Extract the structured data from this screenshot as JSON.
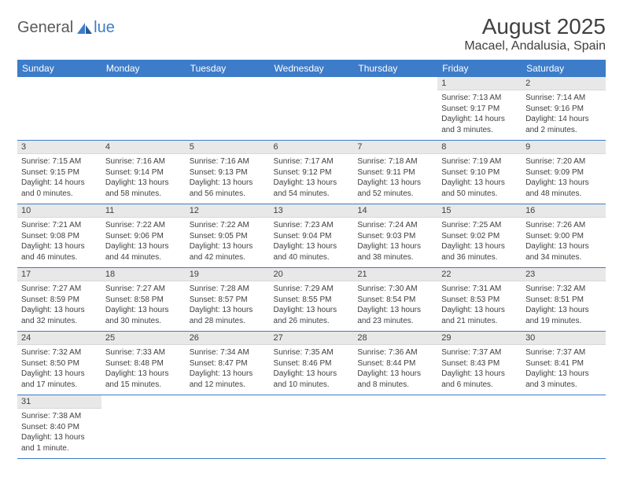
{
  "logo": {
    "text_before": "General",
    "text_after": "lue"
  },
  "title": "August 2025",
  "location": "Macael, Andalusia, Spain",
  "colors": {
    "header_bg": "#3d7cc9",
    "header_text": "#ffffff",
    "daynum_bg": "#e8e8e8",
    "text": "#404040",
    "row_border": "#3d7cc9",
    "logo_gray": "#5a5a5a",
    "logo_blue": "#3d7cc9",
    "background": "#ffffff"
  },
  "typography": {
    "title_fontsize": 28,
    "location_fontsize": 16,
    "dayheader_fontsize": 12,
    "daynum_fontsize": 11,
    "body_fontsize": 10,
    "font_family": "Arial"
  },
  "day_names": [
    "Sunday",
    "Monday",
    "Tuesday",
    "Wednesday",
    "Thursday",
    "Friday",
    "Saturday"
  ],
  "weeks": [
    [
      null,
      null,
      null,
      null,
      null,
      {
        "n": "1",
        "sunrise": "7:13 AM",
        "sunset": "9:17 PM",
        "daylight": "14 hours and 3 minutes."
      },
      {
        "n": "2",
        "sunrise": "7:14 AM",
        "sunset": "9:16 PM",
        "daylight": "14 hours and 2 minutes."
      }
    ],
    [
      {
        "n": "3",
        "sunrise": "7:15 AM",
        "sunset": "9:15 PM",
        "daylight": "14 hours and 0 minutes."
      },
      {
        "n": "4",
        "sunrise": "7:16 AM",
        "sunset": "9:14 PM",
        "daylight": "13 hours and 58 minutes."
      },
      {
        "n": "5",
        "sunrise": "7:16 AM",
        "sunset": "9:13 PM",
        "daylight": "13 hours and 56 minutes."
      },
      {
        "n": "6",
        "sunrise": "7:17 AM",
        "sunset": "9:12 PM",
        "daylight": "13 hours and 54 minutes."
      },
      {
        "n": "7",
        "sunrise": "7:18 AM",
        "sunset": "9:11 PM",
        "daylight": "13 hours and 52 minutes."
      },
      {
        "n": "8",
        "sunrise": "7:19 AM",
        "sunset": "9:10 PM",
        "daylight": "13 hours and 50 minutes."
      },
      {
        "n": "9",
        "sunrise": "7:20 AM",
        "sunset": "9:09 PM",
        "daylight": "13 hours and 48 minutes."
      }
    ],
    [
      {
        "n": "10",
        "sunrise": "7:21 AM",
        "sunset": "9:08 PM",
        "daylight": "13 hours and 46 minutes."
      },
      {
        "n": "11",
        "sunrise": "7:22 AM",
        "sunset": "9:06 PM",
        "daylight": "13 hours and 44 minutes."
      },
      {
        "n": "12",
        "sunrise": "7:22 AM",
        "sunset": "9:05 PM",
        "daylight": "13 hours and 42 minutes."
      },
      {
        "n": "13",
        "sunrise": "7:23 AM",
        "sunset": "9:04 PM",
        "daylight": "13 hours and 40 minutes."
      },
      {
        "n": "14",
        "sunrise": "7:24 AM",
        "sunset": "9:03 PM",
        "daylight": "13 hours and 38 minutes."
      },
      {
        "n": "15",
        "sunrise": "7:25 AM",
        "sunset": "9:02 PM",
        "daylight": "13 hours and 36 minutes."
      },
      {
        "n": "16",
        "sunrise": "7:26 AM",
        "sunset": "9:00 PM",
        "daylight": "13 hours and 34 minutes."
      }
    ],
    [
      {
        "n": "17",
        "sunrise": "7:27 AM",
        "sunset": "8:59 PM",
        "daylight": "13 hours and 32 minutes."
      },
      {
        "n": "18",
        "sunrise": "7:27 AM",
        "sunset": "8:58 PM",
        "daylight": "13 hours and 30 minutes."
      },
      {
        "n": "19",
        "sunrise": "7:28 AM",
        "sunset": "8:57 PM",
        "daylight": "13 hours and 28 minutes."
      },
      {
        "n": "20",
        "sunrise": "7:29 AM",
        "sunset": "8:55 PM",
        "daylight": "13 hours and 26 minutes."
      },
      {
        "n": "21",
        "sunrise": "7:30 AM",
        "sunset": "8:54 PM",
        "daylight": "13 hours and 23 minutes."
      },
      {
        "n": "22",
        "sunrise": "7:31 AM",
        "sunset": "8:53 PM",
        "daylight": "13 hours and 21 minutes."
      },
      {
        "n": "23",
        "sunrise": "7:32 AM",
        "sunset": "8:51 PM",
        "daylight": "13 hours and 19 minutes."
      }
    ],
    [
      {
        "n": "24",
        "sunrise": "7:32 AM",
        "sunset": "8:50 PM",
        "daylight": "13 hours and 17 minutes."
      },
      {
        "n": "25",
        "sunrise": "7:33 AM",
        "sunset": "8:48 PM",
        "daylight": "13 hours and 15 minutes."
      },
      {
        "n": "26",
        "sunrise": "7:34 AM",
        "sunset": "8:47 PM",
        "daylight": "13 hours and 12 minutes."
      },
      {
        "n": "27",
        "sunrise": "7:35 AM",
        "sunset": "8:46 PM",
        "daylight": "13 hours and 10 minutes."
      },
      {
        "n": "28",
        "sunrise": "7:36 AM",
        "sunset": "8:44 PM",
        "daylight": "13 hours and 8 minutes."
      },
      {
        "n": "29",
        "sunrise": "7:37 AM",
        "sunset": "8:43 PM",
        "daylight": "13 hours and 6 minutes."
      },
      {
        "n": "30",
        "sunrise": "7:37 AM",
        "sunset": "8:41 PM",
        "daylight": "13 hours and 3 minutes."
      }
    ],
    [
      {
        "n": "31",
        "sunrise": "7:38 AM",
        "sunset": "8:40 PM",
        "daylight": "13 hours and 1 minute."
      },
      null,
      null,
      null,
      null,
      null,
      null
    ]
  ],
  "labels": {
    "sunrise": "Sunrise:",
    "sunset": "Sunset:",
    "daylight": "Daylight:"
  }
}
